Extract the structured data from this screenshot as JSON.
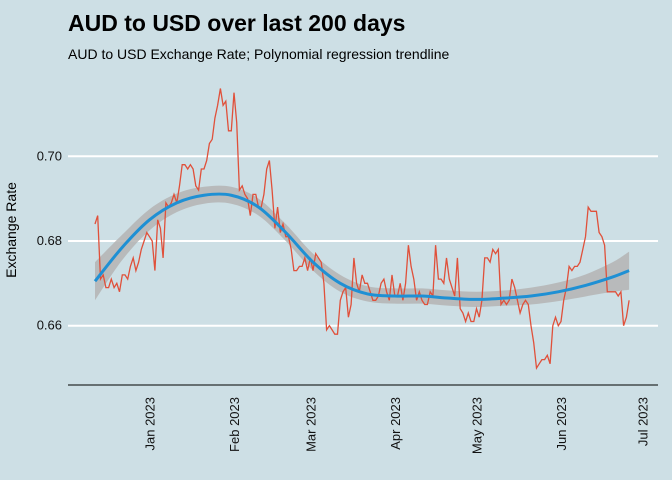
{
  "chart_data": {
    "type": "line",
    "title": "AUD to USD over last 200 days",
    "subtitle": "AUD to USD Exchange Rate; Polynomial regression trendline",
    "xlabel": "",
    "ylabel": "Exchange Rate",
    "ylim": [
      0.646,
      0.718
    ],
    "x_domain_days": [
      0,
      200
    ],
    "y_ticks": [
      {
        "value": 0.66,
        "label": "0.66"
      },
      {
        "value": 0.68,
        "label": "0.68"
      },
      {
        "value": 0.7,
        "label": "0.70"
      }
    ],
    "x_ticks": [
      {
        "day": 20,
        "label": "Jan 2023"
      },
      {
        "day": 51,
        "label": "Feb 2023"
      },
      {
        "day": 79,
        "label": "Mar 2023"
      },
      {
        "day": 110,
        "label": "Apr 2023"
      },
      {
        "day": 140,
        "label": "May 2023"
      },
      {
        "day": 171,
        "label": "Jun 2023"
      },
      {
        "day": 201,
        "label": "Jul 2023"
      }
    ],
    "series": [
      {
        "name": "AUD to USD Exchange Rate",
        "color": "#e0503a",
        "points": [
          [
            0,
            0.684
          ],
          [
            1,
            0.686
          ],
          [
            2,
            0.671
          ],
          [
            3,
            0.672
          ],
          [
            4,
            0.669
          ],
          [
            5,
            0.669
          ],
          [
            6,
            0.671
          ],
          [
            7,
            0.669
          ],
          [
            8,
            0.67
          ],
          [
            9,
            0.668
          ],
          [
            10,
            0.672
          ],
          [
            11,
            0.672
          ],
          [
            12,
            0.671
          ],
          [
            13,
            0.674
          ],
          [
            14,
            0.676
          ],
          [
            15,
            0.673
          ],
          [
            16,
            0.675
          ],
          [
            17,
            0.678
          ],
          [
            18,
            0.68
          ],
          [
            19,
            0.682
          ],
          [
            20,
            0.681
          ],
          [
            21,
            0.68
          ],
          [
            22,
            0.673
          ],
          [
            23,
            0.685
          ],
          [
            24,
            0.683
          ],
          [
            25,
            0.676
          ],
          [
            26,
            0.689
          ],
          [
            27,
            0.688
          ],
          [
            28,
            0.689
          ],
          [
            29,
            0.691
          ],
          [
            30,
            0.689
          ],
          [
            31,
            0.693
          ],
          [
            32,
            0.698
          ],
          [
            33,
            0.698
          ],
          [
            34,
            0.697
          ],
          [
            35,
            0.698
          ],
          [
            36,
            0.697
          ],
          [
            37,
            0.693
          ],
          [
            38,
            0.692
          ],
          [
            39,
            0.697
          ],
          [
            40,
            0.697
          ],
          [
            41,
            0.699
          ],
          [
            42,
            0.703
          ],
          [
            43,
            0.704
          ],
          [
            44,
            0.709
          ],
          [
            45,
            0.712
          ],
          [
            46,
            0.716
          ],
          [
            47,
            0.712
          ],
          [
            48,
            0.713
          ],
          [
            49,
            0.706
          ],
          [
            50,
            0.706
          ],
          [
            51,
            0.715
          ],
          [
            52,
            0.708
          ],
          [
            53,
            0.692
          ],
          [
            54,
            0.693
          ],
          [
            55,
            0.691
          ],
          [
            56,
            0.69
          ],
          [
            57,
            0.686
          ],
          [
            58,
            0.691
          ],
          [
            59,
            0.691
          ],
          [
            60,
            0.688
          ],
          [
            61,
            0.688
          ],
          [
            62,
            0.691
          ],
          [
            63,
            0.697
          ],
          [
            64,
            0.699
          ],
          [
            65,
            0.692
          ],
          [
            66,
            0.683
          ],
          [
            67,
            0.688
          ],
          [
            68,
            0.682
          ],
          [
            69,
            0.684
          ],
          [
            70,
            0.681
          ],
          [
            71,
            0.681
          ],
          [
            72,
            0.678
          ],
          [
            73,
            0.673
          ],
          [
            74,
            0.673
          ],
          [
            75,
            0.674
          ],
          [
            76,
            0.674
          ],
          [
            77,
            0.676
          ],
          [
            78,
            0.673
          ],
          [
            79,
            0.676
          ],
          [
            80,
            0.673
          ],
          [
            81,
            0.677
          ],
          [
            82,
            0.676
          ],
          [
            83,
            0.675
          ],
          [
            84,
            0.67
          ],
          [
            85,
            0.659
          ],
          [
            86,
            0.66
          ],
          [
            87,
            0.659
          ],
          [
            88,
            0.658
          ],
          [
            89,
            0.658
          ],
          [
            90,
            0.666
          ],
          [
            91,
            0.668
          ],
          [
            92,
            0.669
          ],
          [
            93,
            0.662
          ],
          [
            94,
            0.665
          ],
          [
            95,
            0.676
          ],
          [
            96,
            0.67
          ],
          [
            97,
            0.668
          ],
          [
            98,
            0.672
          ],
          [
            99,
            0.67
          ],
          [
            100,
            0.67
          ],
          [
            101,
            0.668
          ],
          [
            102,
            0.666
          ],
          [
            103,
            0.666
          ],
          [
            104,
            0.667
          ],
          [
            105,
            0.67
          ],
          [
            106,
            0.671
          ],
          [
            107,
            0.668
          ],
          [
            108,
            0.666
          ],
          [
            109,
            0.672
          ],
          [
            110,
            0.667
          ],
          [
            111,
            0.667
          ],
          [
            112,
            0.67
          ],
          [
            113,
            0.666
          ],
          [
            114,
            0.67
          ],
          [
            115,
            0.679
          ],
          [
            116,
            0.674
          ],
          [
            117,
            0.671
          ],
          [
            118,
            0.666
          ],
          [
            119,
            0.668
          ],
          [
            120,
            0.666
          ],
          [
            121,
            0.665
          ],
          [
            122,
            0.665
          ],
          [
            123,
            0.668
          ],
          [
            124,
            0.667
          ],
          [
            125,
            0.679
          ],
          [
            126,
            0.671
          ],
          [
            127,
            0.671
          ],
          [
            128,
            0.67
          ],
          [
            129,
            0.676
          ],
          [
            130,
            0.671
          ],
          [
            131,
            0.669
          ],
          [
            132,
            0.667
          ],
          [
            133,
            0.676
          ],
          [
            134,
            0.664
          ],
          [
            135,
            0.663
          ],
          [
            136,
            0.661
          ],
          [
            137,
            0.663
          ],
          [
            138,
            0.661
          ],
          [
            139,
            0.661
          ],
          [
            140,
            0.664
          ],
          [
            141,
            0.662
          ],
          [
            142,
            0.666
          ],
          [
            143,
            0.676
          ],
          [
            144,
            0.676
          ],
          [
            145,
            0.675
          ],
          [
            146,
            0.678
          ],
          [
            147,
            0.677
          ],
          [
            148,
            0.678
          ],
          [
            149,
            0.665
          ],
          [
            150,
            0.666
          ],
          [
            151,
            0.665
          ],
          [
            152,
            0.666
          ],
          [
            153,
            0.671
          ],
          [
            154,
            0.669
          ],
          [
            155,
            0.666
          ],
          [
            156,
            0.663
          ],
          [
            157,
            0.665
          ],
          [
            158,
            0.666
          ],
          [
            159,
            0.665
          ],
          [
            160,
            0.66
          ],
          [
            161,
            0.656
          ],
          [
            162,
            0.65
          ],
          [
            163,
            0.651
          ],
          [
            164,
            0.652
          ],
          [
            165,
            0.652
          ],
          [
            166,
            0.653
          ],
          [
            167,
            0.651
          ],
          [
            168,
            0.66
          ],
          [
            169,
            0.662
          ],
          [
            170,
            0.66
          ],
          [
            171,
            0.661
          ],
          [
            172,
            0.666
          ],
          [
            173,
            0.669
          ],
          [
            174,
            0.674
          ],
          [
            175,
            0.673
          ],
          [
            176,
            0.674
          ],
          [
            177,
            0.674
          ],
          [
            178,
            0.675
          ],
          [
            179,
            0.678
          ],
          [
            180,
            0.681
          ],
          [
            181,
            0.688
          ],
          [
            182,
            0.687
          ],
          [
            183,
            0.687
          ],
          [
            184,
            0.687
          ],
          [
            185,
            0.682
          ],
          [
            186,
            0.681
          ],
          [
            187,
            0.679
          ],
          [
            188,
            0.668
          ],
          [
            189,
            0.668
          ],
          [
            190,
            0.668
          ],
          [
            191,
            0.668
          ],
          [
            192,
            0.667
          ],
          [
            193,
            0.668
          ],
          [
            194,
            0.66
          ],
          [
            195,
            0.662
          ],
          [
            196,
            0.666
          ]
        ]
      },
      {
        "name": "Polynomial regression trendline",
        "color": "#1f90d4",
        "band_color": "#b4b4b4",
        "points": [
          [
            0,
            0.6705,
            0.0045
          ],
          [
            10,
            0.6785,
            0.003
          ],
          [
            20,
            0.685,
            0.0025
          ],
          [
            30,
            0.689,
            0.0022
          ],
          [
            40,
            0.6908,
            0.002
          ],
          [
            50,
            0.6908,
            0.002
          ],
          [
            60,
            0.688,
            0.002
          ],
          [
            70,
            0.682,
            0.002
          ],
          [
            80,
            0.675,
            0.002
          ],
          [
            90,
            0.67,
            0.002
          ],
          [
            100,
            0.6675,
            0.0018
          ],
          [
            110,
            0.667,
            0.0018
          ],
          [
            120,
            0.667,
            0.0018
          ],
          [
            130,
            0.6665,
            0.0018
          ],
          [
            140,
            0.6662,
            0.0018
          ],
          [
            150,
            0.6665,
            0.0018
          ],
          [
            160,
            0.667,
            0.002
          ],
          [
            170,
            0.668,
            0.0022
          ],
          [
            180,
            0.6695,
            0.0026
          ],
          [
            190,
            0.6715,
            0.0035
          ],
          [
            196,
            0.673,
            0.0045
          ]
        ]
      }
    ]
  }
}
